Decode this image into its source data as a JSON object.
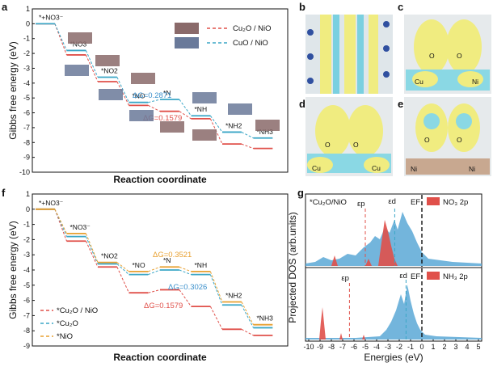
{
  "chart_data": [
    {
      "panel": "a",
      "type": "line",
      "ylabel": "Gibbs free energy (eV)",
      "xlabel": "Reaction coordinate",
      "ylim": [
        -10,
        1
      ],
      "yticks": [
        "1",
        "0",
        "-1",
        "-2",
        "-3",
        "-4",
        "-5",
        "-6",
        "-7",
        "-8",
        "-9",
        "-10"
      ],
      "step_labels": [
        "*+NO3⁻",
        "*NO3⁻",
        "*NO2",
        "*NO",
        "*N",
        "*NH",
        "*NH2",
        "*NH3"
      ],
      "series": [
        {
          "name": "Cu₂O / NiO",
          "color": "#e0504a",
          "values": [
            0,
            -2.1,
            -3.9,
            -5.5,
            -5.9,
            -6.4,
            -8.1,
            -8.4
          ]
        },
        {
          "name": "CuO / NiO",
          "color": "#3aa6c6",
          "values": [
            0,
            -1.8,
            -3.6,
            -5.3,
            -5.1,
            -6.2,
            -7.3,
            -7.7
          ]
        }
      ],
      "annotations": [
        "ΔG=0.2871",
        "ΔG=0.1579"
      ],
      "annotation_colors": [
        "#3a8fcb",
        "#e0504a"
      ]
    },
    {
      "panel": "f",
      "type": "line",
      "ylabel": "Gibbs free energy (eV)",
      "xlabel": "Reaction coordinate",
      "ylim": [
        -9,
        1
      ],
      "yticks": [
        "1",
        "0",
        "-1",
        "-2",
        "-3",
        "-4",
        "-5",
        "-6",
        "-7",
        "-8",
        "-9"
      ],
      "step_labels": [
        "*+NO3⁻",
        "*NO3⁻",
        "*NO2",
        "*NO",
        "*N",
        "*NH",
        "*NH2",
        "*NH3"
      ],
      "series": [
        {
          "name": "*Cu₂O / NiO",
          "color": "#e0504a",
          "values": [
            0,
            -2.1,
            -3.8,
            -5.5,
            -5.3,
            -6.4,
            -7.9,
            -8.3
          ]
        },
        {
          "name": "*Cu₂O",
          "color": "#3aa6c6",
          "values": [
            0,
            -1.8,
            -3.6,
            -4.3,
            -4.0,
            -4.3,
            -6.3,
            -7.8
          ]
        },
        {
          "name": "*NiO",
          "color": "#e8a030",
          "values": [
            0,
            -1.6,
            -3.5,
            -4.1,
            -3.8,
            -4.1,
            -6.1,
            -7.6
          ]
        }
      ],
      "annotations": [
        "ΔG=0.3521",
        "ΔG=0.3026",
        "ΔG=0.1579"
      ],
      "annotation_colors": [
        "#e8a030",
        "#3a8fcb",
        "#e0504a"
      ]
    },
    {
      "panel": "g",
      "type": "area",
      "xlabel": "Energies (eV)",
      "ylabel": "Projected DOS (arb.units)",
      "xlim": [
        -10,
        5
      ],
      "xticks": [
        "-10",
        "-9",
        "-8",
        "-7",
        "-6",
        "-5",
        "-4",
        "-3",
        "-2",
        "-1",
        "0",
        "1",
        "2",
        "3",
        "4",
        "5"
      ],
      "top": {
        "label": "*Cu₂O/NiO",
        "legend": "NO₃ 2p",
        "eps_p": "εp",
        "eps_d": "εd",
        "ef": "EF",
        "eps_p_x": -5,
        "eps_d_x": -2.4,
        "ef_x": 0
      },
      "bottom": {
        "legend": "NH₃ 2p",
        "eps_p": "εp",
        "eps_d": "εd",
        "ef": "EF",
        "eps_p_x": -6.4,
        "eps_d_x": -1.4,
        "ef_x": 0
      }
    }
  ],
  "panels": {
    "a": "a",
    "b": "b",
    "c": "c",
    "d": "d",
    "e": "e",
    "f": "f",
    "g": "g"
  },
  "struct_labels": {
    "c": [
      "O",
      "O",
      "Cu",
      "Ni"
    ],
    "d": [
      "O",
      "O",
      "Cu",
      "Cu"
    ],
    "e": [
      "O",
      "O",
      "Ni",
      "Ni"
    ]
  },
  "colors": {
    "red": "#e0504a",
    "cyan": "#3aa6c6",
    "orange": "#e8a030",
    "pdos_blue": "#5aa8d6",
    "yellow": "#f0ec80"
  }
}
